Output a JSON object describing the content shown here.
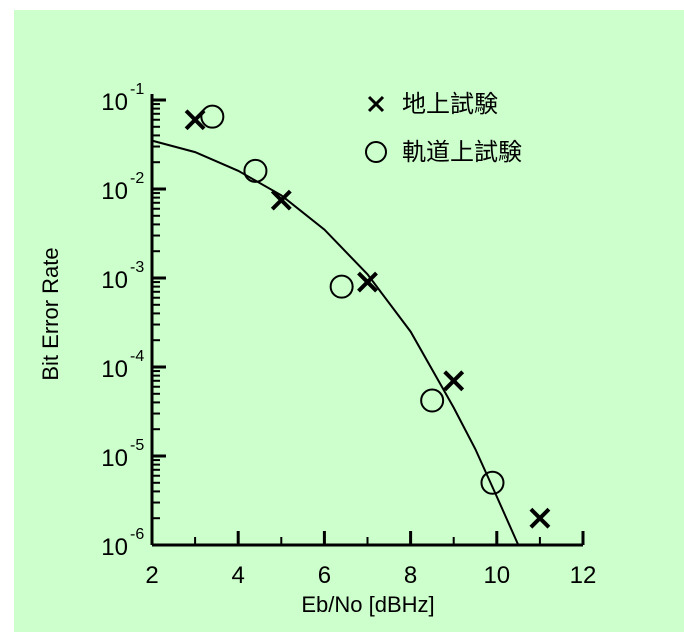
{
  "chart_data": {
    "type": "scatter",
    "xlabel": "Eb/No [dBHz]",
    "ylabel": "Bit Error Rate",
    "xlim": [
      2,
      12
    ],
    "ylim": [
      1e-06,
      0.1
    ],
    "y_scale": "log",
    "x_ticks": [
      2,
      4,
      6,
      8,
      10,
      12
    ],
    "x_tick_labels": [
      "2",
      "4",
      "6",
      "8",
      "10",
      "12"
    ],
    "y_tick_exponents": [
      "-6",
      "-5",
      "-4",
      "-3",
      "-2",
      "-1"
    ],
    "y_tick_base": "10",
    "grid": false,
    "legend_position": "top-right",
    "series": [
      {
        "name": "地上試験",
        "marker": "x",
        "x": [
          3.0,
          5.0,
          7.0,
          9.0,
          11.0
        ],
        "y": [
          0.06,
          0.0075,
          0.0009,
          7e-05,
          2e-06
        ]
      },
      {
        "name": "軌道上試験",
        "marker": "circle",
        "x": [
          3.4,
          4.4,
          6.4,
          8.5,
          9.9
        ],
        "y": [
          0.065,
          0.016,
          0.0008,
          4.2e-05,
          5e-06
        ]
      },
      {
        "marker": "line",
        "x": [
          2.0,
          3.0,
          4.0,
          5.0,
          6.0,
          7.0,
          8.0,
          9.0,
          9.5,
          10.0,
          10.5
        ],
        "y": [
          0.035,
          0.026,
          0.016,
          0.0085,
          0.0035,
          0.0011,
          0.00025,
          3.5e-05,
          1.2e-05,
          3.5e-06,
          1e-06
        ]
      }
    ]
  }
}
